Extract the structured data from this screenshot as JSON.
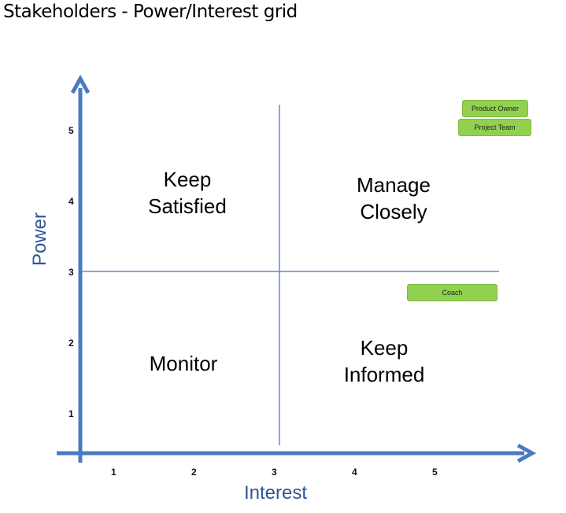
{
  "title": "Stakeholders - Power/Interest grid",
  "axes": {
    "x_label": "Interest",
    "y_label": "Power",
    "x_ticks": [
      "1",
      "2",
      "3",
      "4",
      "5"
    ],
    "y_ticks": [
      "5",
      "4",
      "3",
      "2",
      "1"
    ],
    "color": "#2e5597"
  },
  "quadrants": {
    "top_left": "Keep\nSatisfied",
    "top_right": "Manage\nClosely",
    "bottom_left": "Monitor",
    "bottom_right": "Keep\nInformed"
  },
  "stakeholders": [
    {
      "label": "Product Owner",
      "color": "#92d050"
    },
    {
      "label": "Project Team",
      "color": "#92d050"
    },
    {
      "label": "Coach",
      "color": "#92d050"
    }
  ]
}
